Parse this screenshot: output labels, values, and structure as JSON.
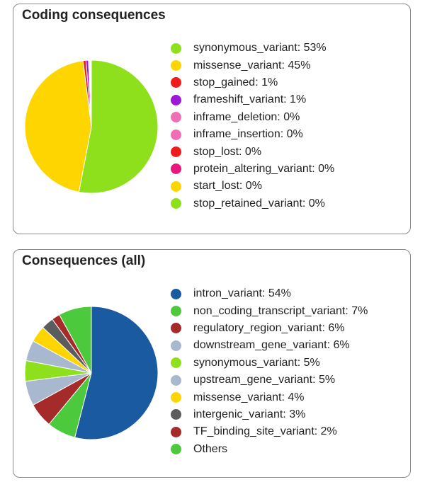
{
  "chart_data": [
    {
      "type": "pie",
      "title": "Coding consequences",
      "legend_position": "right",
      "slices": [
        {
          "label": "synonymous_variant: 53%",
          "value": 53.0,
          "color": "#8ee01c"
        },
        {
          "label": "missense_variant: 45%",
          "value": 45.0,
          "color": "#ffd500"
        },
        {
          "label": "stop_gained: 1%",
          "value": 0.7,
          "color": "#ee1c1c"
        },
        {
          "label": "frameshift_variant: 1%",
          "value": 0.6,
          "color": "#9b19d6"
        },
        {
          "label": "inframe_deletion: 0%",
          "value": 0.15,
          "color": "#f06eb5"
        },
        {
          "label": "inframe_insertion: 0%",
          "value": 0.1,
          "color": "#f06eb5"
        },
        {
          "label": "stop_lost: 0%",
          "value": 0.1,
          "color": "#ee1c1c"
        },
        {
          "label": "protein_altering_variant: 0%",
          "value": 0.15,
          "color": "#e7177d"
        },
        {
          "label": "start_lost: 0%",
          "value": 0.1,
          "color": "#ffd500"
        },
        {
          "label": "stop_retained_variant: 0%",
          "value": 0.1,
          "color": "#8ee01c"
        }
      ]
    },
    {
      "type": "pie",
      "title": "Consequences (all)",
      "legend_position": "right",
      "slices": [
        {
          "label": "intron_variant: 54%",
          "value": 54.0,
          "color": "#1a5aa0"
        },
        {
          "label": "non_coding_transcript_variant: 7%",
          "value": 7.0,
          "color": "#4cc93c"
        },
        {
          "label": "regulatory_region_variant: 6%",
          "value": 6.0,
          "color": "#a52a2a"
        },
        {
          "label": "downstream_gene_variant: 6%",
          "value": 6.0,
          "color": "#a8b8cf"
        },
        {
          "label": "synonymous_variant: 5%",
          "value": 5.0,
          "color": "#8ee01c"
        },
        {
          "label": "upstream_gene_variant: 5%",
          "value": 5.0,
          "color": "#a8b8cf"
        },
        {
          "label": "missense_variant: 4%",
          "value": 4.0,
          "color": "#ffd500"
        },
        {
          "label": "intergenic_variant: 3%",
          "value": 3.0,
          "color": "#5c5c5c"
        },
        {
          "label": "TF_binding_site_variant: 2%",
          "value": 2.0,
          "color": "#a52a2a"
        },
        {
          "label": "Others",
          "value": 8.0,
          "color": "#4cc93c"
        }
      ]
    }
  ]
}
